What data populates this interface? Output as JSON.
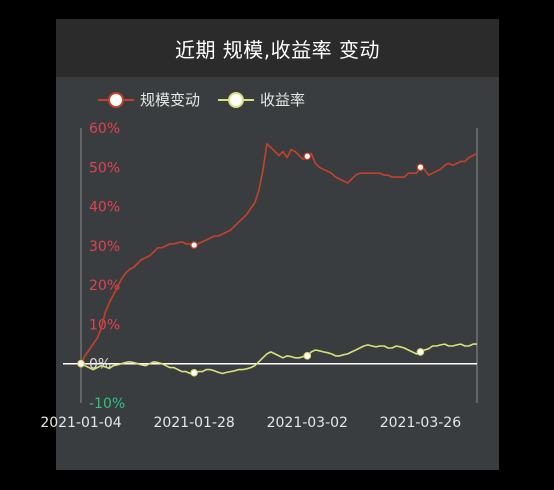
{
  "header": {
    "title": "近期 规模,收益率 变动"
  },
  "colors": {
    "scale_line": "#c8402a",
    "return_line": "#d7e07a",
    "positive_tick": "#e0424f",
    "negative_tick": "#2ec27e",
    "zero_tick": "#d9d9d9",
    "zero_line": "#ffffff",
    "axis": "#8d8d8d",
    "card_bg": "#3a3d3f",
    "header_bg": "#2b2b2b"
  },
  "chart_data": {
    "type": "line",
    "title": "近期 规模,收益率 变动",
    "xlabel": "",
    "ylabel": "",
    "ylim": [
      -10,
      60
    ],
    "y_tick_values": [
      60,
      50,
      40,
      30,
      20,
      10,
      0,
      -10
    ],
    "y_tick_labels": [
      "60%",
      "50%",
      "40%",
      "30%",
      "20%",
      "10%",
      "0%",
      "-10%"
    ],
    "x_tick_labels": [
      "2021-01-04",
      "2021-01-28",
      "2021-03-02",
      "2021-03-26"
    ],
    "x_tick_index": [
      0,
      28,
      56,
      84
    ],
    "x_count": 99,
    "legend_position": "top-left",
    "grid": false,
    "series": [
      {
        "name": "规模变动",
        "color": "#c8402a",
        "marker_index": [
          0,
          28,
          56,
          84
        ],
        "values": [
          0.0,
          2.0,
          3.5,
          5.0,
          6.5,
          9.0,
          13.0,
          15.5,
          17.5,
          19.5,
          21.5,
          23.0,
          24.0,
          24.5,
          25.5,
          26.5,
          27.0,
          27.5,
          28.5,
          29.5,
          29.5,
          30.0,
          30.5,
          30.5,
          30.8,
          31.0,
          30.5,
          30.5,
          30.2,
          30.5,
          31.0,
          31.5,
          32.0,
          32.5,
          32.5,
          33.0,
          33.5,
          34.0,
          35.0,
          36.0,
          37.0,
          38.0,
          39.5,
          41.0,
          44.0,
          49.0,
          56.0,
          55.0,
          54.0,
          53.0,
          54.0,
          52.5,
          54.5,
          54.0,
          53.0,
          52.0,
          52.8,
          53.5,
          51.0,
          50.0,
          49.5,
          49.0,
          48.5,
          47.5,
          47.0,
          46.5,
          46.0,
          47.0,
          48.0,
          48.5,
          48.5,
          48.5,
          48.5,
          48.5,
          48.5,
          48.0,
          48.0,
          47.5,
          47.5,
          47.5,
          47.5,
          48.5,
          48.5,
          48.5,
          50.0,
          49.5,
          48.0,
          48.5,
          49.0,
          49.5,
          50.5,
          51.0,
          50.5,
          51.0,
          51.5,
          51.5,
          52.5,
          53.0,
          53.5
        ]
      },
      {
        "name": "收益率",
        "color": "#d7e07a",
        "marker_index": [
          0,
          28,
          56,
          84
        ],
        "values": [
          0.0,
          -0.5,
          -1.0,
          -1.5,
          -1.0,
          -0.5,
          -0.8,
          -1.2,
          -0.5,
          -0.3,
          0.0,
          0.3,
          0.5,
          0.3,
          0.0,
          -0.3,
          -0.5,
          0.0,
          0.5,
          0.3,
          0.0,
          -0.5,
          -1.0,
          -1.0,
          -1.5,
          -2.0,
          -2.0,
          -2.5,
          -2.3,
          -2.0,
          -2.0,
          -1.5,
          -1.5,
          -1.8,
          -2.2,
          -2.5,
          -2.2,
          -2.0,
          -1.8,
          -1.5,
          -1.5,
          -1.3,
          -1.0,
          -0.5,
          0.5,
          1.5,
          2.5,
          3.0,
          2.5,
          2.0,
          1.5,
          2.0,
          1.8,
          1.5,
          1.5,
          1.8,
          2.0,
          3.0,
          3.5,
          3.3,
          3.0,
          2.8,
          2.5,
          2.0,
          2.0,
          2.3,
          2.5,
          3.0,
          3.5,
          4.0,
          4.5,
          4.8,
          4.5,
          4.3,
          4.5,
          4.5,
          4.0,
          4.0,
          4.5,
          4.3,
          4.0,
          3.5,
          3.0,
          2.5,
          3.0,
          3.5,
          3.8,
          4.5,
          4.5,
          4.8,
          5.0,
          4.5,
          4.5,
          4.8,
          5.0,
          4.5,
          4.5,
          5.0,
          5.0
        ]
      }
    ]
  }
}
